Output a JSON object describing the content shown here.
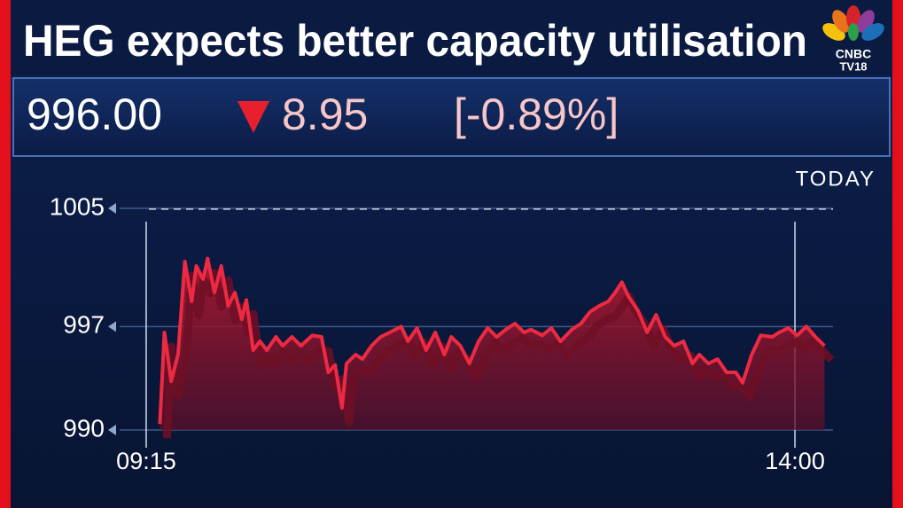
{
  "header": {
    "title": "HEG expects better capacity utilisation",
    "price": "996.00",
    "change": "8.95",
    "change_percent": "[-0.89%]",
    "logo": {
      "brand": "CNBC",
      "channel": "TV18"
    }
  },
  "chart_data": {
    "type": "line",
    "period_label": "TODAY",
    "x": [
      561,
      563,
      566,
      569,
      572,
      575,
      577,
      580,
      582,
      585,
      588,
      591,
      594,
      597,
      599,
      602,
      605,
      608,
      612,
      615,
      619,
      623,
      628,
      632,
      635,
      638,
      641,
      643,
      647,
      650,
      654,
      658,
      662,
      667,
      670,
      674,
      678,
      682,
      686,
      689,
      693,
      697,
      701,
      705,
      709,
      713,
      717,
      721,
      724,
      729,
      733,
      737,
      742,
      746,
      750,
      754,
      758,
      761,
      764,
      767,
      771,
      775,
      779,
      783,
      787,
      791,
      795,
      798,
      802,
      806,
      810,
      814,
      817,
      821,
      825,
      830,
      833,
      837,
      841,
      845,
      849,
      853
    ],
    "series": [
      {
        "color": "#ee2a42",
        "values": [
          990.4,
          996.6,
          993.3,
          995.1,
          1001.4,
          998.7,
          1001.1,
          1000.2,
          1001.6,
          999.3,
          1001.1,
          998.4,
          999.3,
          997.5,
          998.8,
          995.4,
          996.0,
          995.4,
          996.3,
          995.7,
          996.3,
          995.7,
          996.4,
          996.3,
          993.9,
          994.4,
          991.5,
          994.5,
          995.1,
          994.8,
          995.7,
          996.3,
          996.6,
          997.0,
          996.0,
          996.9,
          995.4,
          996.6,
          995.1,
          996.3,
          995.7,
          994.5,
          996.0,
          996.9,
          996.3,
          996.8,
          997.2,
          996.6,
          996.8,
          996.4,
          996.9,
          996.0,
          996.8,
          997.2,
          998.0,
          998.4,
          998.7,
          999.3,
          1000.0,
          999.0,
          998.1,
          996.6,
          997.8,
          996.3,
          995.7,
          996.0,
          994.5,
          995.1,
          994.5,
          994.8,
          993.9,
          993.9,
          993.2,
          995.1,
          996.4,
          996.3,
          996.6,
          996.9,
          996.4,
          997.0,
          996.3,
          995.7
        ]
      }
    ],
    "reference_line": 1004.95,
    "ylim": [
      990,
      1005
    ],
    "yticks": [
      990,
      997,
      1005
    ],
    "xlim": [
      541,
      861
    ],
    "xticks": [
      {
        "value": 555,
        "label": "09:15"
      },
      {
        "value": 840,
        "label": "14:00"
      }
    ],
    "grid": true
  }
}
